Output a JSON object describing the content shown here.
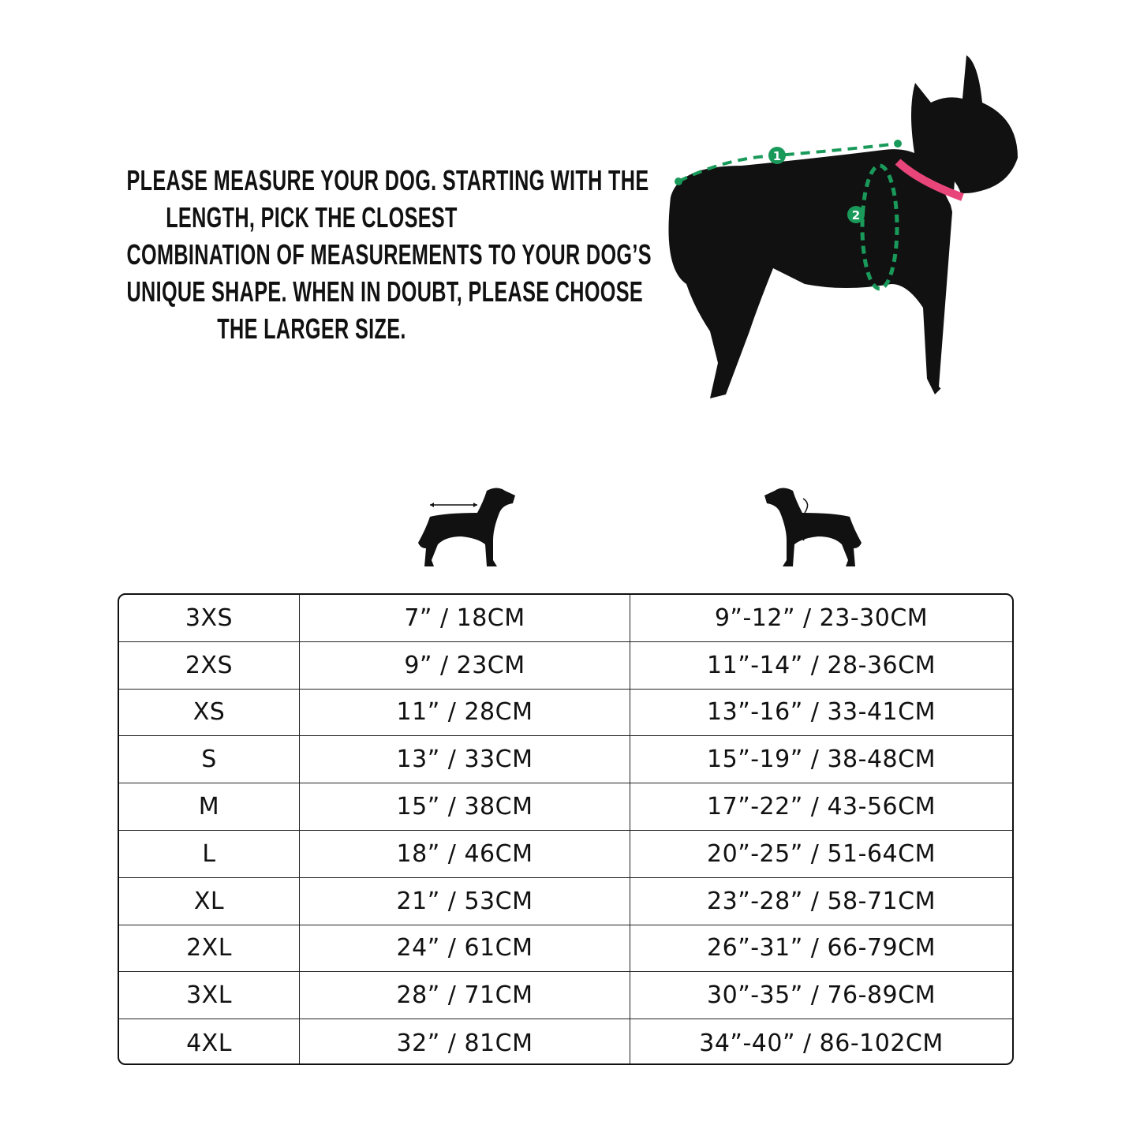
{
  "instructions": {
    "lines": [
      "PLEASE MEASURE YOUR DOG. STARTING WITH THE",
      "LENGTH, PICK THE CLOSEST",
      "COMBINATION OF MEASUREMENTS TO YOUR DOG’S",
      "UNIQUE SHAPE. WHEN IN DOUBT, PLEASE CHOOSE",
      "THE LARGER SIZE."
    ]
  },
  "photo": {
    "markers": [
      "1",
      "2"
    ],
    "colors": {
      "measure_line": "#1a9a5a",
      "collar": "#e8457a"
    }
  },
  "column_icons": [
    "dog-length-icon",
    "dog-girth-icon"
  ],
  "size_table": {
    "rows": [
      [
        "3XS",
        "7” / 18CM",
        "9”-12” / 23-30CM"
      ],
      [
        "2XS",
        "9” / 23CM",
        "11”-14” / 28-36CM"
      ],
      [
        "XS",
        "11” / 28CM",
        "13”-16” / 33-41CM"
      ],
      [
        "S",
        "13” / 33CM",
        "15”-19” / 38-48CM"
      ],
      [
        "M",
        "15” / 38CM",
        "17”-22” / 43-56CM"
      ],
      [
        "L",
        "18” / 46CM",
        "20”-25” / 51-64CM"
      ],
      [
        "XL",
        "21” / 53CM",
        "23”-28” / 58-71CM"
      ],
      [
        "2XL",
        "24” / 61CM",
        "26”-31” / 66-79CM"
      ],
      [
        "3XL",
        "28” / 71CM",
        "30”-35” / 76-89CM"
      ],
      [
        "4XL",
        "32” / 81CM",
        "34”-40” / 86-102CM"
      ]
    ]
  }
}
